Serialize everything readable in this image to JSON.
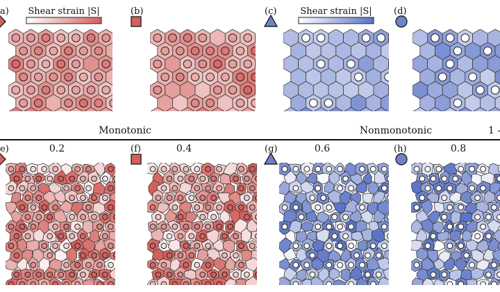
{
  "colorbars": {
    "red": {
      "label": "Shear strain |S|",
      "from": "#ffffff",
      "to": "#d4605c"
    },
    "blue": {
      "label": "Shear strain |S|",
      "from": "#ffffff",
      "to": "#5b73c7"
    }
  },
  "rows": {
    "monotonic_label": "Monotonic",
    "nonmonotonic_label": "Nonmonotonic",
    "edge_fragment": "1 -"
  },
  "panels": [
    {
      "id": "a",
      "letter": "a)",
      "marker": "diamond",
      "marker_color": "#d4605c",
      "family": "red",
      "kind": "regular",
      "seed": 11
    },
    {
      "id": "b",
      "letter": "(b)",
      "marker": "square",
      "marker_color": "#d4605c",
      "family": "red",
      "kind": "regular",
      "seed": 23
    },
    {
      "id": "c",
      "letter": "(c)",
      "marker": "triangle",
      "marker_color": "#6f82c8",
      "family": "blue",
      "kind": "regular",
      "seed": 37
    },
    {
      "id": "d",
      "letter": "(d)",
      "marker": "circle",
      "marker_color": "#6f82c8",
      "family": "blue",
      "kind": "regular",
      "seed": 41
    },
    {
      "id": "e",
      "letter": "e)",
      "marker": "diamond",
      "marker_color": "#d4605c",
      "family": "red",
      "kind": "disordered",
      "value": "0.2",
      "seed": 53
    },
    {
      "id": "f",
      "letter": "(f)",
      "marker": "square",
      "marker_color": "#d4605c",
      "family": "red",
      "kind": "disordered",
      "value": "0.4",
      "seed": 67
    },
    {
      "id": "g",
      "letter": "(g)",
      "marker": "triangle",
      "marker_color": "#6f82c8",
      "family": "blue",
      "kind": "disordered",
      "value": "0.6",
      "seed": 79
    },
    {
      "id": "h",
      "letter": "(h)",
      "marker": "circle",
      "marker_color": "#6f82c8",
      "family": "blue",
      "kind": "disordered",
      "value": "0.8",
      "seed": 97
    }
  ]
}
